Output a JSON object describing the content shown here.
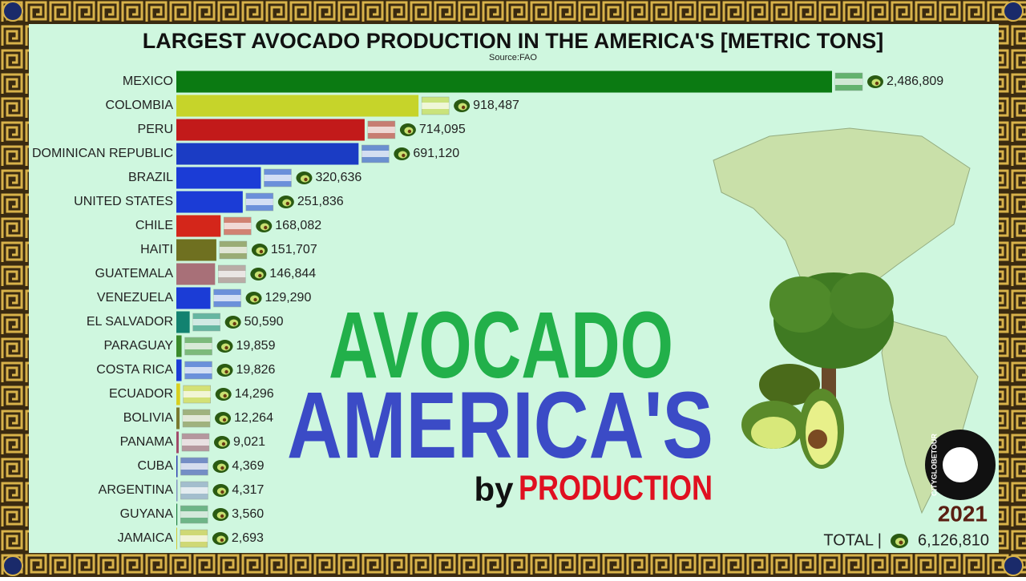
{
  "chart_data": {
    "type": "bar",
    "orientation": "horizontal",
    "title": "LARGEST AVOCADO PRODUCTION IN THE AMERICA'S [METRIC TONS]",
    "subtitle": "Source:FAO",
    "categories": [
      "MEXICO",
      "COLOMBIA",
      "PERU",
      "DOMINICAN REPUBLIC",
      "BRAZIL",
      "UNITED STATES",
      "CHILE",
      "HAITI",
      "GUATEMALA",
      "VENEZUELA",
      "EL SALVADOR",
      "PARAGUAY",
      "COSTA RICA",
      "ECUADOR",
      "BOLIVIA",
      "PANAMA",
      "CUBA",
      "ARGENTINA",
      "GUYANA",
      "JAMAICA"
    ],
    "values": [
      2486809,
      918487,
      714095,
      691120,
      320636,
      251836,
      168082,
      151707,
      146844,
      129290,
      50590,
      19859,
      19826,
      14296,
      12264,
      9021,
      4369,
      4317,
      3560,
      2693
    ],
    "value_labels": [
      "2,486,809",
      "918,487",
      "714,095",
      "691,120",
      "320,636",
      "251,836",
      "168,082",
      "151,707",
      "146,844",
      "129,290",
      "50,590",
      "19,859",
      "19,826",
      "14,296",
      "12,264",
      "9,021",
      "4,369",
      "4,317",
      "3,560",
      "2,693"
    ],
    "colors": [
      "#0b7a12",
      "#c6d42a",
      "#c21a1a",
      "#1b3cc4",
      "#1b3cd6",
      "#1b3cd6",
      "#d4261a",
      "#6f7020",
      "#a87078",
      "#1b3cd6",
      "#128270",
      "#3a8a2a",
      "#1b3cd6",
      "#d8d020",
      "#7a7a30",
      "#a04a6a",
      "#2a3ab0",
      "#8090c0",
      "#208040",
      "#d0c020"
    ],
    "year": "2021",
    "total_text": "TOTAL |",
    "total": {
      "value": 6126810,
      "label": "6,126,810"
    },
    "overlay": {
      "line1": "AVOCADO",
      "line2": "AMERICA'S",
      "by": "by",
      "production": "PRODUCTION"
    },
    "logo": "CITYGLOBETOUR"
  }
}
